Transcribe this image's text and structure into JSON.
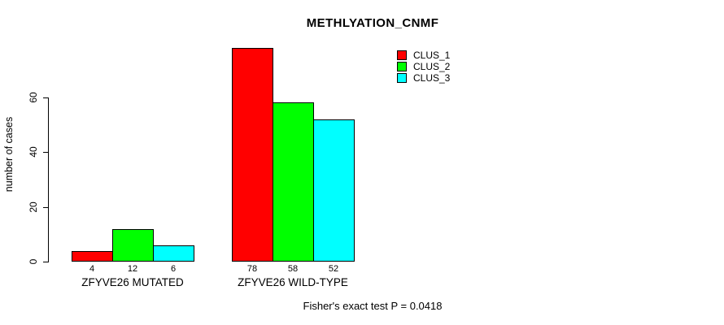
{
  "chart_data": {
    "type": "bar",
    "title": "METHLYATION_CNMF",
    "ylabel": "number of cases",
    "xlabel": "",
    "ylim": [
      0,
      78
    ],
    "yticks": [
      0,
      20,
      40,
      60
    ],
    "grid": false,
    "categories": [
      "ZFYVE26 MUTATED",
      "ZFYVE26 WILD-TYPE"
    ],
    "series": [
      {
        "name": "CLUS_1",
        "color": "#FF0000",
        "values": [
          4,
          78
        ]
      },
      {
        "name": "CLUS_2",
        "color": "#00FF00",
        "values": [
          12,
          58
        ]
      },
      {
        "name": "CLUS_3",
        "color": "#00FFFF",
        "values": [
          6,
          52
        ]
      }
    ],
    "bar_value_labels": [
      [
        "4",
        "12",
        "6"
      ],
      [
        "78",
        "58",
        "52"
      ]
    ],
    "legend_position": "top-right",
    "annotation": "Fisher's exact test P = 0.0418"
  },
  "colors": {
    "bar_border": "#000000",
    "axis": "#000000",
    "background": "#FFFFFF"
  }
}
